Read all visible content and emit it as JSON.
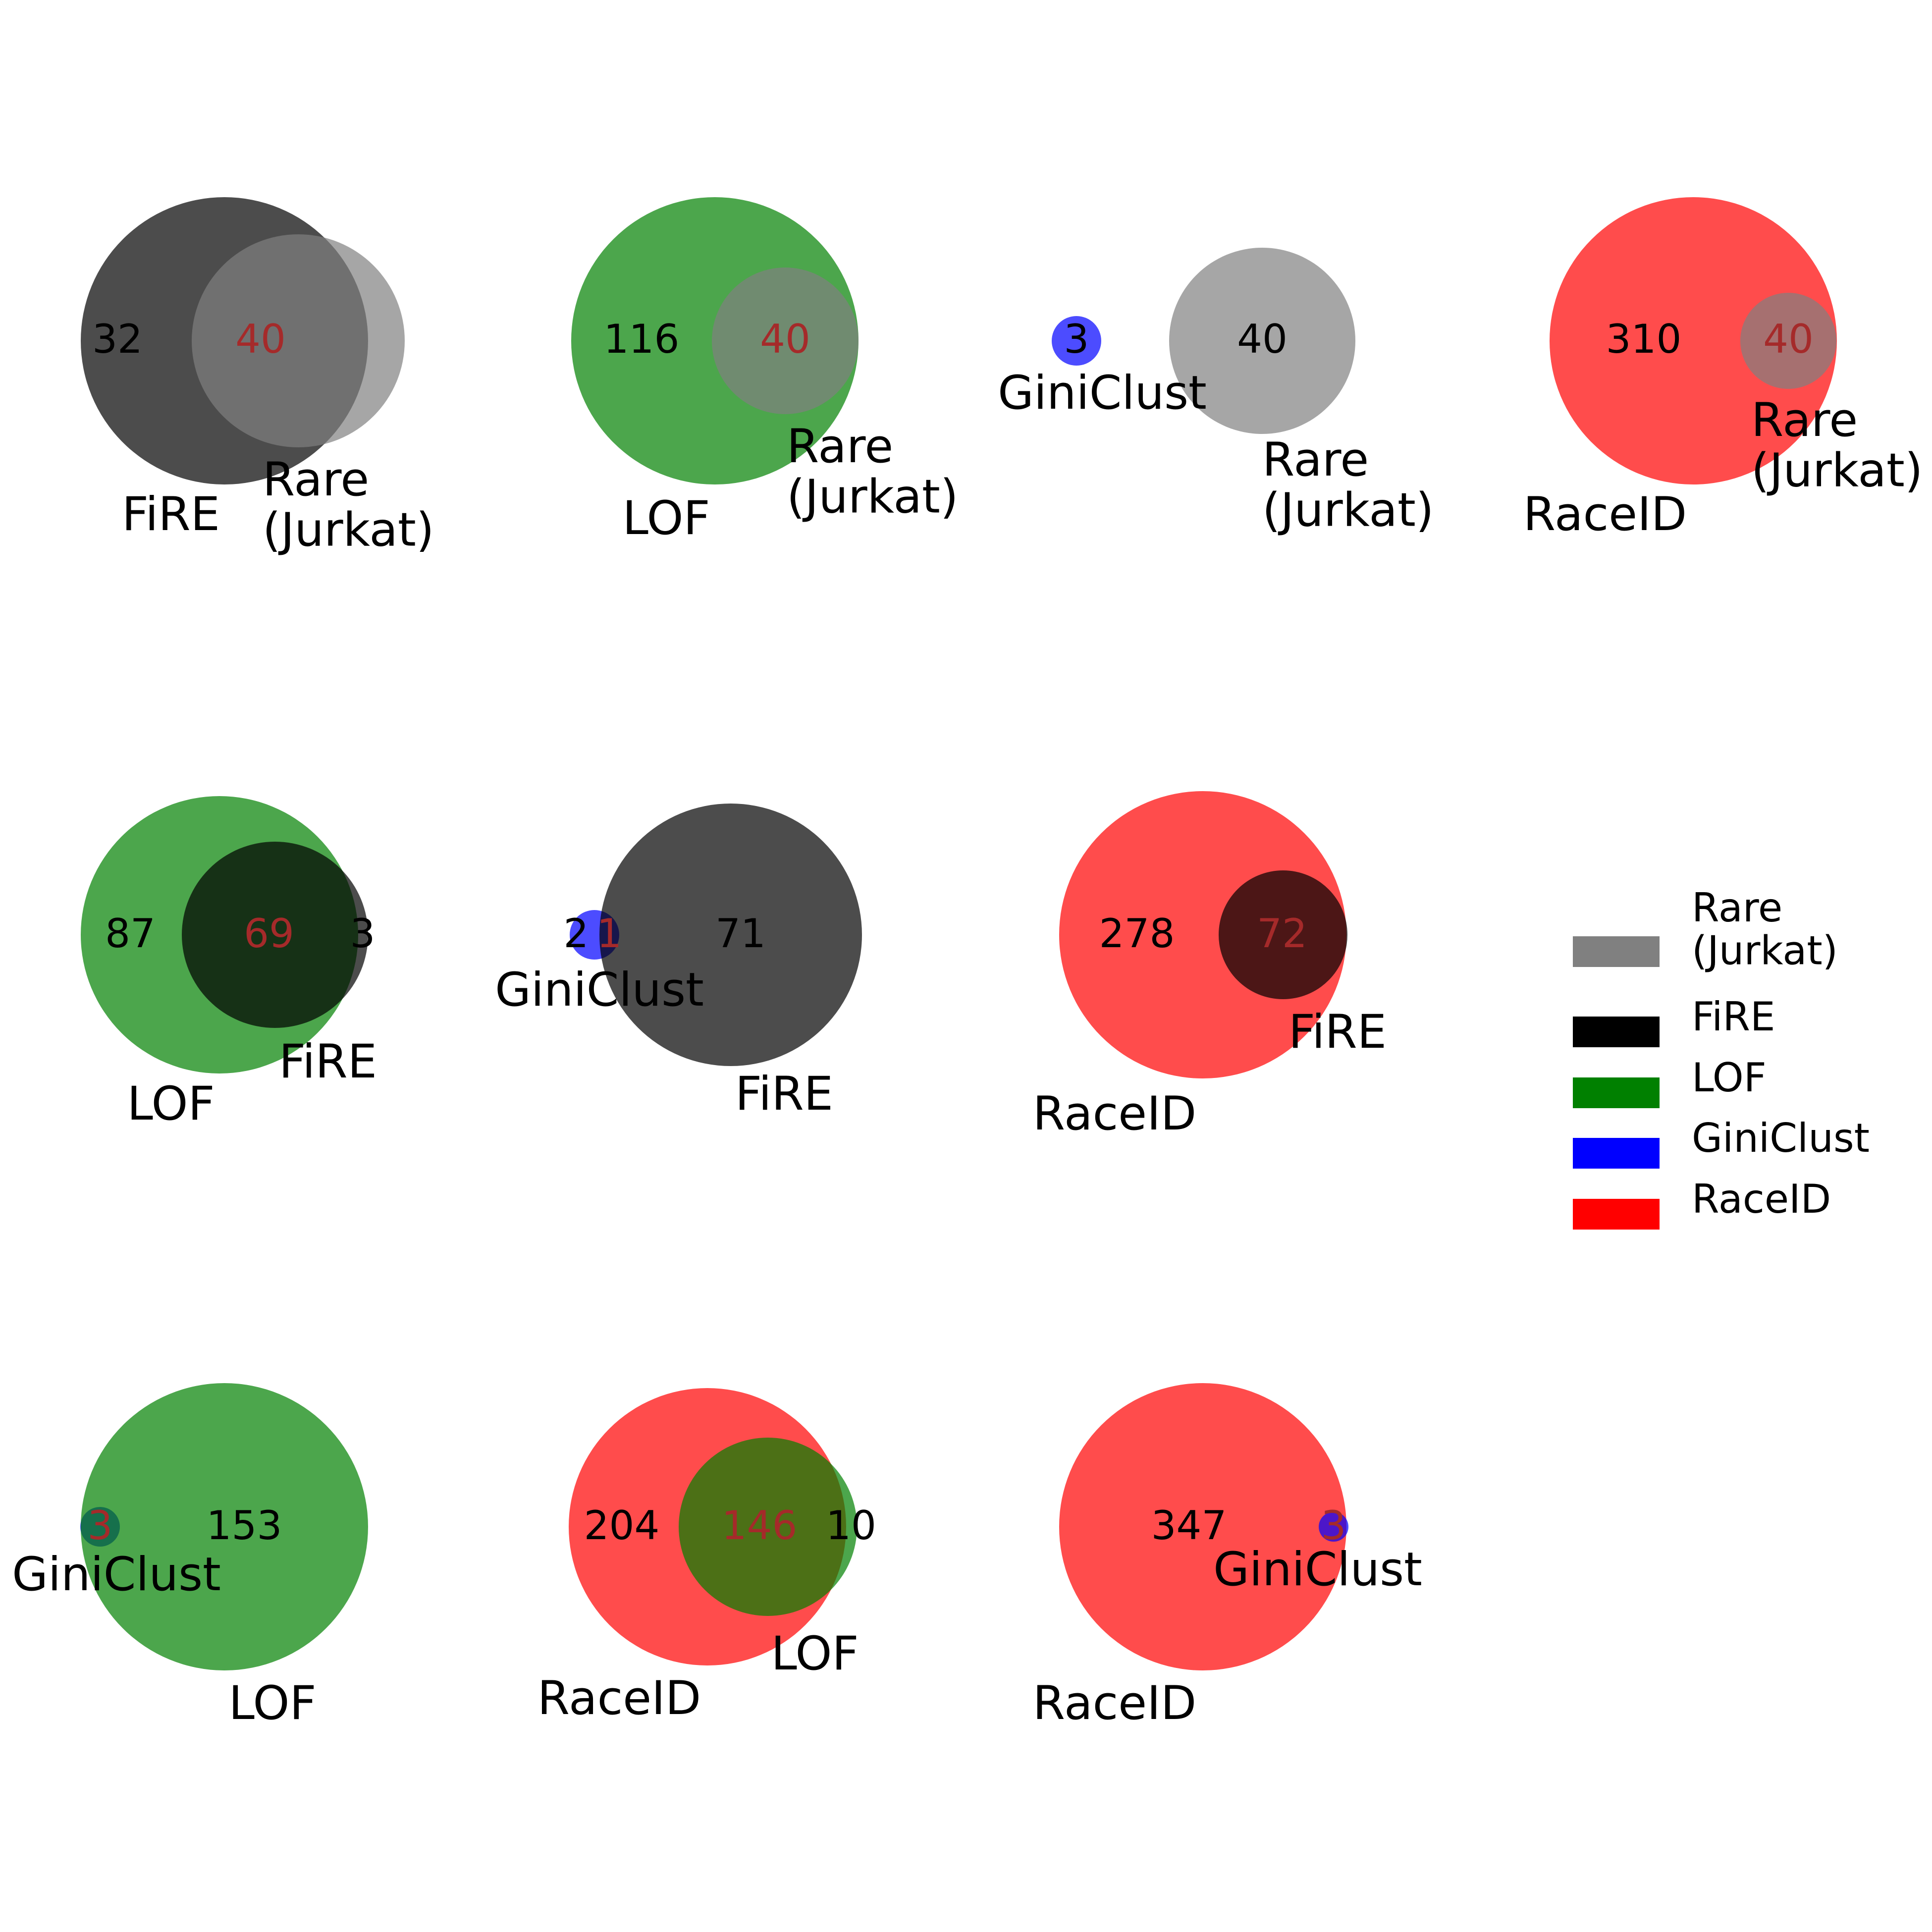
{
  "colors": {
    "Rare (Jurkat)": "#808080",
    "FiRE": "#000000",
    "LOF": "#008000",
    "GiniClust": "#0000ff",
    "RaceID": "#ff0000",
    "only_text": "#000000",
    "overlap_text": "#a52a2a"
  },
  "legend": {
    "entries": [
      {
        "label": "Rare\n(Jurkat)",
        "key": "Rare (Jurkat)"
      },
      {
        "label": "FiRE",
        "key": "FiRE"
      },
      {
        "label": "LOF",
        "key": "LOF"
      },
      {
        "label": "GiniClust",
        "key": "GiniClust"
      },
      {
        "label": "RaceID",
        "key": "RaceID"
      }
    ]
  },
  "venns": [
    {
      "id": "fire-vs-rare",
      "set_a": {
        "key": "FiRE",
        "label": "FiRE"
      },
      "set_b": {
        "key": "Rare (Jurkat)",
        "label": "Rare\n(Jurkat)"
      },
      "only_a": "32",
      "overlap": "40",
      "only_b": "",
      "sizes": [
        72,
        40,
        40
      ]
    },
    {
      "id": "lof-vs-rare",
      "set_a": {
        "key": "LOF",
        "label": "LOF"
      },
      "set_b": {
        "key": "Rare (Jurkat)",
        "label": "Rare\n(Jurkat)"
      },
      "only_a": "116",
      "overlap": "40",
      "only_b": "",
      "sizes": [
        156,
        40,
        40
      ]
    },
    {
      "id": "giniclust-vs-rare",
      "set_a": {
        "key": "GiniClust",
        "label": "GiniClust"
      },
      "set_b": {
        "key": "Rare (Jurkat)",
        "label": "Rare\n(Jurkat)"
      },
      "only_a": "3",
      "overlap": "",
      "only_b": "40",
      "sizes": [
        3,
        40,
        0
      ]
    },
    {
      "id": "raceid-vs-rare",
      "set_a": {
        "key": "RaceID",
        "label": "RaceID"
      },
      "set_b": {
        "key": "Rare (Jurkat)",
        "label": "Rare\n(Jurkat)"
      },
      "only_a": "310",
      "overlap": "40",
      "only_b": "",
      "sizes": [
        350,
        40,
        40
      ]
    },
    {
      "id": "lof-vs-fire",
      "set_a": {
        "key": "LOF",
        "label": "LOF"
      },
      "set_b": {
        "key": "FiRE",
        "label": "FiRE"
      },
      "only_a": "87",
      "overlap": "69",
      "only_b": "3",
      "sizes": [
        156,
        72,
        69
      ]
    },
    {
      "id": "giniclust-vs-fire",
      "set_a": {
        "key": "GiniClust",
        "label": "GiniClust"
      },
      "set_b": {
        "key": "FiRE",
        "label": "FiRE"
      },
      "only_a": "2",
      "overlap": "1",
      "only_b": "71",
      "sizes": [
        3,
        72,
        1
      ]
    },
    {
      "id": "raceid-vs-fire",
      "set_a": {
        "key": "RaceID",
        "label": "RaceID"
      },
      "set_b": {
        "key": "FiRE",
        "label": "FiRE"
      },
      "only_a": "278",
      "overlap": "72",
      "only_b": "",
      "sizes": [
        350,
        72,
        72
      ]
    },
    {
      "id": "giniclust-vs-lof",
      "set_a": {
        "key": "GiniClust",
        "label": "GiniClust"
      },
      "set_b": {
        "key": "LOF",
        "label": "LOF"
      },
      "only_a": "",
      "overlap": "3",
      "only_b": "153",
      "sizes": [
        3,
        156,
        3
      ]
    },
    {
      "id": "raceid-vs-lof",
      "set_a": {
        "key": "RaceID",
        "label": "RaceID"
      },
      "set_b": {
        "key": "LOF",
        "label": "LOF"
      },
      "only_a": "204",
      "overlap": "146",
      "only_b": "10",
      "sizes": [
        350,
        156,
        146
      ]
    },
    {
      "id": "raceid-vs-giniclust",
      "set_a": {
        "key": "RaceID",
        "label": "RaceID"
      },
      "set_b": {
        "key": "GiniClust",
        "label": "GiniClust"
      },
      "only_a": "347",
      "overlap": "3",
      "only_b": "",
      "sizes": [
        350,
        3,
        3
      ]
    }
  ]
}
